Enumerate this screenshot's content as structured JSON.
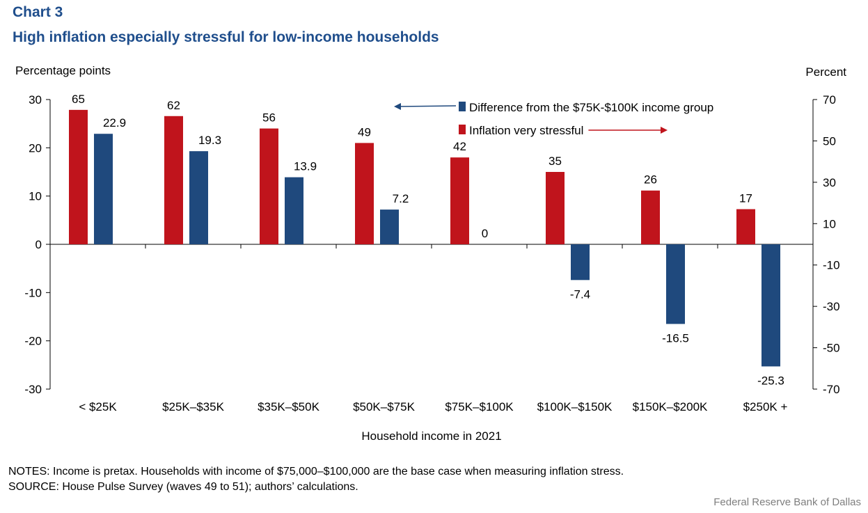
{
  "header": {
    "chart_number": "Chart 3",
    "title": "High inflation especially stressful for low-income households"
  },
  "chart_data": {
    "type": "bar",
    "categories": [
      "< $25K",
      "$25K–$35K",
      "$35K–$50K",
      "$50K–$75K",
      "$75K–$100K",
      "$100K–$150K",
      "$150K–$200K",
      "$250K +"
    ],
    "series": [
      {
        "name": "Inflation very stressful",
        "axis": "right",
        "color": "#c0141c",
        "values": [
          65,
          62,
          56,
          49,
          42,
          35,
          26,
          17
        ],
        "labels": [
          "65",
          "62",
          "56",
          "49",
          "42",
          "35",
          "26",
          "17"
        ]
      },
      {
        "name": "Difference from the $75K-$100K income group",
        "axis": "left",
        "color": "#1f497d",
        "values": [
          22.9,
          19.3,
          13.9,
          7.2,
          0,
          -7.4,
          -16.5,
          -25.3
        ],
        "labels": [
          "22.9",
          "19.3",
          "13.9",
          "7.2",
          "0",
          "-7.4",
          "-16.5",
          "-25.3"
        ]
      }
    ],
    "left_axis": {
      "label": "Percentage points",
      "ylim": [
        -30,
        30
      ],
      "ticks": [
        30,
        20,
        10,
        0,
        -10,
        -20,
        -30
      ],
      "tick_labels": [
        "30",
        "20",
        "10",
        "0",
        "-10",
        "-20",
        "-30"
      ]
    },
    "right_axis": {
      "label": "Percent",
      "ylim": [
        -70,
        70
      ],
      "ticks": [
        70,
        50,
        30,
        10,
        -10,
        -30,
        -50,
        -70
      ],
      "tick_labels": [
        "70",
        "50",
        "30",
        "10",
        "-10",
        "-30",
        "-50",
        "-70"
      ]
    },
    "xlabel": "Household income in 2021",
    "legend_position": "top-right",
    "grid": false
  },
  "footer": {
    "notes": "NOTES: Income is pretax. Households with income of $75,000–$100,000 are the base case when measuring inflation stress.",
    "source": "SOURCE: House Pulse Survey (waves 49 to 51); authors’ calculations.",
    "credit": "Federal Reserve Bank of Dallas"
  }
}
